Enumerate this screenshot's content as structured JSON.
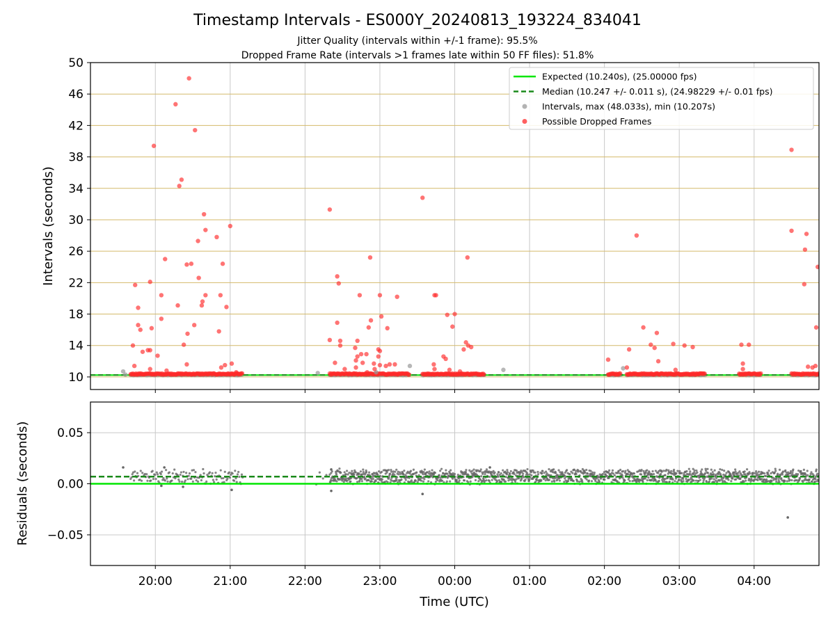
{
  "figure": {
    "title": "Timestamp Intervals - ES000Y_20240813_193224_834041",
    "subtitle_1": "Jitter Quality (intervals within +/-1 frame): 95.5%",
    "subtitle_2": "Dropped Frame Rate (intervals >1 frames late within 50 FF files): 51.8%"
  },
  "colors": {
    "expected": "#00e600",
    "median": "#1a8a1a",
    "intervals": "#999999",
    "dropped": "#ff2a2a",
    "residual_points": "#666666",
    "grid": "#c8c8c8",
    "hgrid_top": "#d4b96a"
  },
  "chart_data": [
    {
      "type": "scatter",
      "panel": "top",
      "ylabel": "Intervals (seconds)",
      "xlabel": "",
      "ylim": [
        8.4,
        50
      ],
      "yticks": [
        10,
        14,
        18,
        22,
        26,
        30,
        34,
        38,
        42,
        46,
        50
      ],
      "expected_value": 10.24,
      "median_value": 10.247,
      "legend": {
        "placement": "top-right",
        "entries": [
          {
            "label": "Expected (10.240s), (25.00000 fps)",
            "marker": "line-solid",
            "color": "#00e600"
          },
          {
            "label": "Median (10.247 +/- 0.011 s), (24.98229 +/- 0.01 fps)",
            "marker": "line-dashed",
            "color": "#1a8a1a"
          },
          {
            "label": "Intervals, max (48.033s), min (10.207s)",
            "marker": "dot",
            "color": "#999999"
          },
          {
            "label": "Possible Dropped Frames",
            "marker": "dot",
            "color": "#ff2a2a"
          }
        ]
      },
      "dense_segments": [
        {
          "start": 19.67,
          "end": 21.17
        },
        {
          "start": 22.33,
          "end": 23.4
        },
        {
          "start": 23.57,
          "end": 24.4
        },
        {
          "start": 26.05,
          "end": 26.22
        },
        {
          "start": 26.3,
          "end": 27.35
        },
        {
          "start": 27.8,
          "end": 28.1
        },
        {
          "start": 28.5,
          "end": 28.87
        }
      ],
      "dropped_points": [
        [
          19.7,
          14.0
        ],
        [
          19.72,
          11.4
        ],
        [
          19.73,
          21.7
        ],
        [
          19.77,
          18.8
        ],
        [
          19.77,
          16.6
        ],
        [
          19.8,
          16.0
        ],
        [
          19.83,
          13.2
        ],
        [
          19.9,
          13.4
        ],
        [
          19.93,
          13.4
        ],
        [
          19.93,
          22.1
        ],
        [
          19.95,
          16.2
        ],
        [
          19.93,
          11.0
        ],
        [
          19.98,
          39.4
        ],
        [
          20.03,
          12.7
        ],
        [
          20.08,
          20.4
        ],
        [
          20.08,
          17.4
        ],
        [
          20.13,
          25.0
        ],
        [
          20.15,
          10.8
        ],
        [
          20.27,
          44.7
        ],
        [
          20.3,
          19.1
        ],
        [
          20.32,
          34.3
        ],
        [
          20.35,
          35.1
        ],
        [
          20.38,
          14.1
        ],
        [
          20.42,
          24.3
        ],
        [
          20.43,
          15.5
        ],
        [
          20.42,
          11.6
        ],
        [
          20.45,
          48.0
        ],
        [
          20.48,
          24.4
        ],
        [
          20.52,
          16.6
        ],
        [
          20.53,
          41.4
        ],
        [
          20.57,
          27.3
        ],
        [
          20.58,
          22.6
        ],
        [
          20.62,
          19.1
        ],
        [
          20.63,
          19.6
        ],
        [
          20.65,
          30.7
        ],
        [
          20.67,
          28.7
        ],
        [
          20.67,
          20.4
        ],
        [
          20.82,
          27.8
        ],
        [
          20.85,
          15.8
        ],
        [
          20.87,
          20.4
        ],
        [
          20.88,
          11.2
        ],
        [
          20.9,
          24.4
        ],
        [
          20.93,
          11.5
        ],
        [
          20.95,
          18.9
        ],
        [
          21.0,
          29.2
        ],
        [
          21.02,
          11.7
        ],
        [
          21.08,
          10.6
        ],
        [
          22.33,
          31.3
        ],
        [
          22.33,
          14.7
        ],
        [
          22.4,
          11.8
        ],
        [
          22.43,
          16.9
        ],
        [
          22.43,
          22.8
        ],
        [
          22.45,
          21.9
        ],
        [
          22.47,
          14.6
        ],
        [
          22.47,
          14.0
        ],
        [
          22.53,
          11.0
        ],
        [
          22.67,
          13.7
        ],
        [
          22.68,
          12.1
        ],
        [
          22.68,
          11.2
        ],
        [
          22.7,
          12.6
        ],
        [
          22.7,
          14.6
        ],
        [
          22.73,
          20.4
        ],
        [
          22.75,
          12.9
        ],
        [
          22.77,
          11.8
        ],
        [
          22.82,
          12.9
        ],
        [
          22.83,
          10.6
        ],
        [
          22.85,
          16.3
        ],
        [
          22.87,
          25.2
        ],
        [
          22.88,
          17.2
        ],
        [
          22.92,
          11.7
        ],
        [
          22.93,
          11.0
        ],
        [
          22.98,
          12.6
        ],
        [
          22.98,
          13.5
        ],
        [
          23.0,
          13.3
        ],
        [
          23.0,
          20.4
        ],
        [
          23.02,
          17.7
        ],
        [
          23.0,
          11.5
        ],
        [
          23.08,
          11.4
        ],
        [
          23.1,
          16.2
        ],
        [
          23.13,
          11.6
        ],
        [
          23.2,
          11.6
        ],
        [
          23.23,
          20.2
        ],
        [
          23.57,
          32.8
        ],
        [
          23.72,
          11.6
        ],
        [
          23.73,
          20.4
        ],
        [
          23.75,
          20.4
        ],
        [
          23.73,
          11.0
        ],
        [
          23.85,
          12.6
        ],
        [
          23.88,
          12.3
        ],
        [
          23.9,
          17.9
        ],
        [
          23.93,
          10.9
        ],
        [
          23.97,
          16.4
        ],
        [
          24.0,
          18.0
        ],
        [
          24.07,
          10.7
        ],
        [
          24.12,
          13.5
        ],
        [
          24.15,
          14.4
        ],
        [
          24.17,
          25.2
        ],
        [
          24.18,
          14.0
        ],
        [
          24.22,
          13.8
        ],
        [
          26.05,
          12.2
        ],
        [
          26.3,
          11.2
        ],
        [
          26.33,
          13.5
        ],
        [
          26.43,
          28.0
        ],
        [
          26.52,
          16.3
        ],
        [
          26.62,
          14.1
        ],
        [
          26.67,
          13.7
        ],
        [
          26.7,
          15.6
        ],
        [
          26.72,
          12.0
        ],
        [
          26.92,
          14.2
        ],
        [
          26.95,
          10.9
        ],
        [
          27.07,
          14.0
        ],
        [
          27.18,
          13.8
        ],
        [
          27.83,
          14.1
        ],
        [
          27.85,
          11.7
        ],
        [
          27.85,
          11.0
        ],
        [
          27.93,
          14.1
        ],
        [
          28.5,
          38.9
        ],
        [
          28.5,
          28.6
        ],
        [
          28.67,
          21.8
        ],
        [
          28.68,
          26.2
        ],
        [
          28.7,
          28.2
        ],
        [
          28.72,
          11.3
        ],
        [
          28.78,
          11.2
        ],
        [
          28.82,
          11.4
        ],
        [
          28.83,
          16.3
        ],
        [
          28.85,
          24.0
        ]
      ],
      "gray_points": [
        [
          19.57,
          10.7
        ],
        [
          19.6,
          10.3
        ],
        [
          22.17,
          10.5
        ],
        [
          22.95,
          10.6
        ],
        [
          23.4,
          11.4
        ],
        [
          24.65,
          10.9
        ],
        [
          26.25,
          11.1
        ]
      ]
    },
    {
      "type": "scatter",
      "panel": "bottom",
      "ylabel": "Residuals (seconds)",
      "xlabel": "Time (UTC)",
      "ylim": [
        -0.08,
        0.08
      ],
      "yticks": [
        0.05,
        0.0,
        -0.05
      ],
      "ytick_labels": [
        "0.05",
        "0.00",
        "−0.05"
      ],
      "expected_residual": 0.0,
      "median_residual": 0.007,
      "residual_segments": [
        {
          "start": 19.67,
          "end": 21.17,
          "density": 0.4
        },
        {
          "start": 22.15,
          "end": 22.33,
          "density": 0.1
        },
        {
          "start": 22.33,
          "end": 28.87,
          "density": 1.0
        }
      ],
      "outlier_points": [
        [
          19.57,
          0.016
        ],
        [
          20.12,
          0.016
        ],
        [
          20.37,
          -0.003
        ],
        [
          21.02,
          -0.006
        ],
        [
          20.08,
          -0.002
        ],
        [
          22.35,
          -0.007
        ],
        [
          22.35,
          0.014
        ],
        [
          23.57,
          -0.01
        ],
        [
          24.47,
          0.016
        ],
        [
          28.45,
          -0.033
        ],
        [
          28.8,
          0.0
        ]
      ]
    }
  ],
  "x_axis": {
    "range": [
      19.133,
      28.867
    ],
    "ticks": [
      20,
      21,
      22,
      23,
      24,
      25,
      26,
      27,
      28
    ],
    "tick_labels": [
      "20:00",
      "21:00",
      "22:00",
      "23:00",
      "00:00",
      "01:00",
      "02:00",
      "03:00",
      "04:00"
    ]
  }
}
